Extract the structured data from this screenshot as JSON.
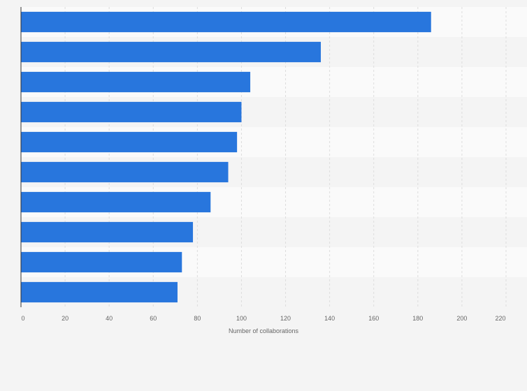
{
  "chart_data": {
    "type": "bar",
    "orientation": "horizontal",
    "categories": [
      "",
      "",
      "",
      "",
      "",
      "",
      "",
      "",
      "",
      ""
    ],
    "values": [
      186,
      136,
      104,
      100,
      98,
      94,
      86,
      78,
      73,
      71
    ],
    "title": "",
    "xlabel": "Number of collaborations",
    "ylabel": "",
    "xlim": [
      0,
      220
    ],
    "xticks": [
      0,
      20,
      40,
      60,
      80,
      100,
      120,
      140,
      160,
      180,
      200,
      220
    ],
    "grid": true,
    "legend": "none",
    "colors": {
      "bar": "#2876dd",
      "band_light": "#fafafa",
      "band_dark": "#f4f4f4",
      "grid": "#dddddd",
      "axis": "#333333",
      "text": "#666666"
    }
  }
}
